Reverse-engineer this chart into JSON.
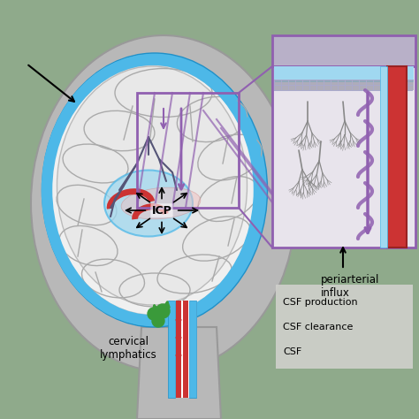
{
  "bg_color": "#8faa8b",
  "head_fill": "#b8b8b8",
  "head_outline": "#999999",
  "csf_blue": "#4db8e8",
  "csf_blue_light": "#a0d8f0",
  "csf_blue_dark": "#2090c8",
  "brain_fill": "#e8e8e8",
  "brain_outline": "#aaaaaa",
  "icp_label": "ICP",
  "periarterial_label": "periarterial\ninflux",
  "cervical_label": "cervical\nlymphatics",
  "csf_production": "CSF production",
  "csf_clearance": "CSF clearance",
  "csf_label": "CSF",
  "legend_bg": "#d0d0cc",
  "purple": "#9060b0",
  "red_vessel": "#cc3333",
  "green_lymph": "#3a9a3a",
  "inset_bg": "#d8d0e0",
  "inset_inner": "#e8e4ec",
  "inset_top": "#b8b0c8"
}
